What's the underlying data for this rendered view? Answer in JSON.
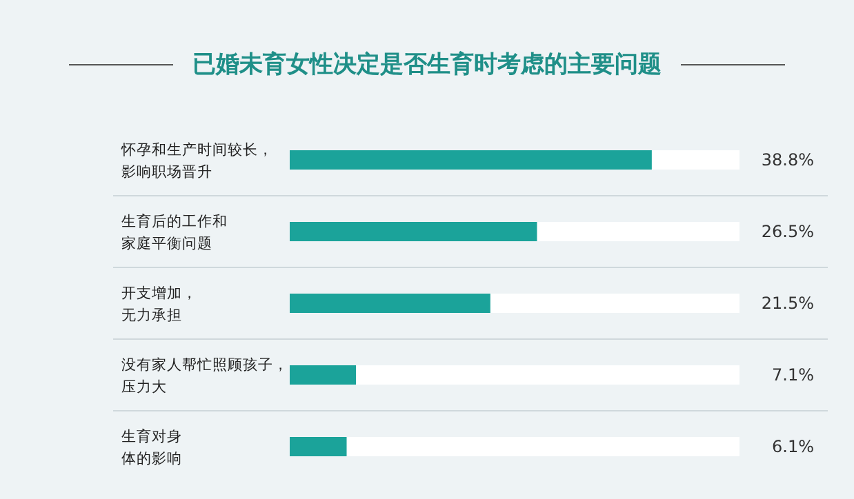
{
  "chart_data": {
    "type": "bar",
    "orientation": "horizontal",
    "title": "已婚未育女性决定是否生育时考虑的主要问题",
    "categories": [
      "怀孕和生产时间较长，影响职场晋升",
      "生育后的工作和家庭平衡问题",
      "开支增加，无力承担",
      "没有家人帮忙照顾孩子，压力大",
      "生育对身体的影响"
    ],
    "values": [
      38.8,
      26.5,
      21.5,
      7.1,
      6.1
    ],
    "value_labels": [
      "38.8%",
      "26.5%",
      "21.5%",
      "7.1%",
      "6.1%"
    ],
    "color": "#1ba39a",
    "xlim": [
      0,
      48.2
    ]
  }
}
